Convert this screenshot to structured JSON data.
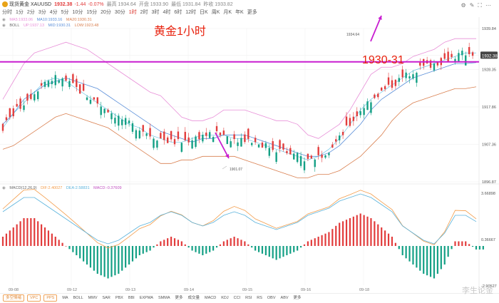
{
  "header": {
    "symbol_name": "现货黄金 XAUUSD",
    "price": "1932.38",
    "change": "-1.44",
    "change_pct": "-0.07%",
    "high_label": "最高 1934.64",
    "open_label": "开盘 1933.90",
    "low_label": "最低 1931.84",
    "prev_close_label": "昨收 1933.82",
    "timeframes": [
      "分时",
      "1分",
      "2分",
      "3分",
      "4分",
      "5分",
      "10分",
      "15分",
      "20分",
      "30分",
      "1时",
      "2时",
      "3时",
      "4时",
      "6时",
      "12时",
      "日K",
      "周K",
      "月K",
      "年K",
      "更多"
    ],
    "active_timeframe_index": 10
  },
  "indicators": {
    "ma": {
      "ma5": "MA5:1933.06",
      "ma10": "MA10:1933.16",
      "ma20": "MA20:1930.31"
    },
    "boll": {
      "name": "BOLL",
      "up": "UP:1937.13",
      "mid": "MID:1930.31",
      "low": "LOW:1923.48"
    },
    "macd": {
      "name": "MACD(12,26,9)",
      "dif": "DIF:2.40027",
      "dea": "DEA:2.58831",
      "macd": "MACD:-0.37609"
    }
  },
  "colors": {
    "up": "#e23d3d",
    "down": "#14a085",
    "boll_up": "#e88fd8",
    "boll_mid": "#5b8fd9",
    "boll_low": "#d97f4f",
    "dif": "#f39c4a",
    "dea": "#5bb3dc",
    "hline": "#c81ed0",
    "arrow": "#c81ed0"
  },
  "annotations": {
    "title": "黄金1小时",
    "level_label": "1930-31",
    "high_marker": "1934.64",
    "low_marker": "1901.07"
  },
  "chart_data": [
    {
      "type": "candlestick",
      "title": "黄金1小时",
      "x_labels": [
        "09-08",
        "09-12",
        "09-13",
        "09-14",
        "09-15",
        "09-16",
        "09-18"
      ],
      "y_ticks": [
        "1939.84",
        "1932.38",
        "1928.35",
        "1917.86",
        "1907.36",
        "1896.87"
      ],
      "ylim": [
        1896.87,
        1939.84
      ],
      "grid": true,
      "horizontal_line": 1930.5,
      "high_marker": 1934.64,
      "low_marker": 1901.07,
      "series": [
        {
          "name": "BOLL UP",
          "values": [
            1920,
            1925,
            1930,
            1933,
            1934,
            1935,
            1936,
            1935,
            1934,
            1932,
            1930,
            1928,
            1926,
            1924,
            1922,
            1921,
            1918,
            1915,
            1914,
            1914,
            1915,
            1917,
            1917,
            1917,
            1916,
            1915,
            1914,
            1914,
            1913,
            1910,
            1909,
            1911,
            1913,
            1917,
            1922,
            1927,
            1929,
            1929,
            1930,
            1932,
            1933,
            1934,
            1936,
            1937,
            1937,
            1937
          ]
        },
        {
          "name": "BOLL MID",
          "values": [
            1913,
            1916,
            1920,
            1922,
            1924,
            1925,
            1926,
            1925,
            1924,
            1923,
            1921,
            1919,
            1917,
            1915,
            1913,
            1911,
            1910,
            1909,
            1908,
            1909,
            1909,
            1910,
            1910,
            1910,
            1909,
            1908,
            1907,
            1906,
            1905,
            1904,
            1904,
            1905,
            1907,
            1910,
            1913,
            1917,
            1920,
            1922,
            1924,
            1926,
            1927,
            1928,
            1929,
            1930,
            1930,
            1930.3
          ]
        },
        {
          "name": "BOLL LOW",
          "values": [
            1906,
            1907,
            1909,
            1911,
            1913,
            1915,
            1916,
            1915,
            1914,
            1913,
            1912,
            1910,
            1908,
            1906,
            1904,
            1902,
            1902,
            1903,
            1903,
            1904,
            1904,
            1904,
            1904,
            1903,
            1902,
            1901,
            1900,
            1899,
            1898,
            1898,
            1899,
            1899,
            1900,
            1902,
            1904,
            1907,
            1910,
            1914,
            1917,
            1919,
            1920,
            1921,
            1922,
            1923,
            1923,
            1923.5
          ]
        },
        {
          "name": "MA",
          "values": [
            1912,
            1916,
            1919,
            1922,
            1925,
            1926,
            1925,
            1923,
            1921,
            1919,
            1917,
            1915,
            1913,
            1912,
            1910,
            1909,
            1908,
            1908,
            1909,
            1910,
            1910,
            1910,
            1909,
            1909,
            1908,
            1907,
            1906,
            1905,
            1904,
            1903,
            1904,
            1906,
            1909,
            1913,
            1917,
            1920,
            1922,
            1924,
            1926,
            1928,
            1929,
            1930,
            1931,
            1932,
            1933,
            1933
          ]
        },
        {
          "name": "MACD",
          "values": [
            1,
            2,
            3,
            3,
            2,
            1,
            0,
            -1,
            -2,
            -3,
            -3.5,
            -3,
            -2,
            -1,
            -0.5,
            0.5,
            1,
            0.5,
            -0.5,
            -1,
            -0.5,
            0.5,
            1,
            0.5,
            -0.5,
            -1,
            -1.5,
            -1,
            -0.5,
            0.5,
            1,
            1.5,
            2.5,
            3,
            3.5,
            3,
            2,
            1,
            -1,
            -2,
            -3,
            -3.5,
            -2,
            0.5,
            0.5,
            -0.38
          ]
        }
      ]
    }
  ],
  "footer": {
    "buttons": [
      "多空情绪",
      "VPC",
      "PPS"
    ],
    "tabs": [
      "MA",
      "BOLL",
      "MMV",
      "SAR",
      "PBX",
      "BBI",
      "EXPMA",
      "SMMA",
      "更多",
      "成交量",
      "MACD",
      "KDJ",
      "CCI",
      "RSI",
      "RS",
      "OBV",
      "ABV",
      "更多"
    ]
  },
  "watermark": "李生论金"
}
